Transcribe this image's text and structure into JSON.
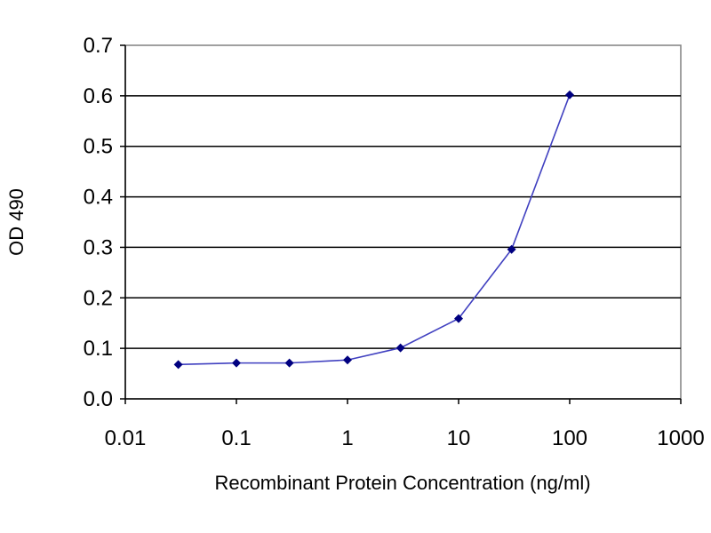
{
  "chart_data": {
    "type": "line",
    "x_scale": "log",
    "xlabel": "Recombinant Protein Concentration (ng/ml)",
    "ylabel": "OD 490",
    "xlim": [
      0.01,
      1000
    ],
    "ylim": [
      0,
      0.7
    ],
    "x_ticks": [
      "0.01",
      "0.1",
      "1",
      "10",
      "100",
      "1000"
    ],
    "y_ticks": [
      "0.0",
      "0.1",
      "0.2",
      "0.3",
      "0.4",
      "0.5",
      "0.6",
      "0.7"
    ],
    "grid": "horizontal",
    "legend": "none",
    "colors": {
      "line": "#4040c0",
      "marker": "#000080",
      "grid": "#000000",
      "plot_background": "#ffffff"
    },
    "series": [
      {
        "x": [
          0.03,
          0.1,
          0.3,
          1,
          3,
          10,
          30,
          100
        ],
        "y": [
          0.068,
          0.071,
          0.071,
          0.077,
          0.101,
          0.159,
          0.296,
          0.602
        ]
      }
    ]
  }
}
